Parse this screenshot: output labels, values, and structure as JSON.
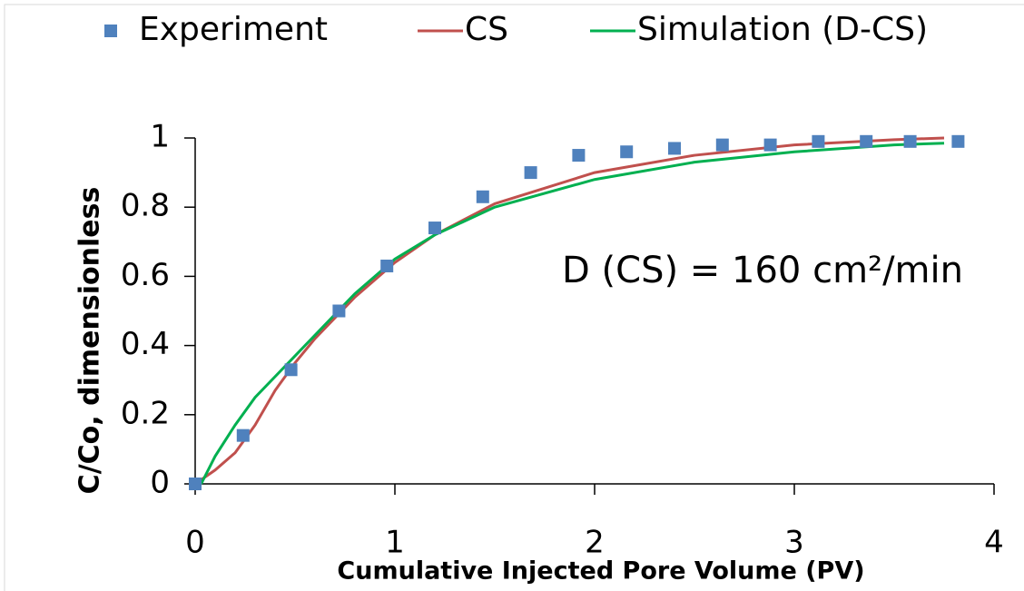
{
  "chart_data": {
    "type": "line",
    "legend": "top",
    "xlabel": "Cumulative Injected Pore Volume (PV)",
    "ylabel": "C/Co, dimensionless",
    "annotation": "D (CS) = 160 cm²/min",
    "xlim": [
      0,
      4
    ],
    "xticks": [
      0,
      1,
      2,
      3,
      4
    ],
    "ylim": [
      0,
      1
    ],
    "yticks": [
      0,
      0.2,
      0.4,
      0.6,
      0.8,
      1
    ],
    "series": [
      {
        "name": "Experiment",
        "type": "scatter",
        "color": "#4f81bd",
        "x": [
          0,
          0.24,
          0.48,
          0.72,
          0.96,
          1.2,
          1.44,
          1.68,
          1.92,
          2.16,
          2.4,
          2.64,
          2.88,
          3.12,
          3.36,
          3.58,
          3.82
        ],
        "values": [
          0,
          0.14,
          0.33,
          0.5,
          0.63,
          0.74,
          0.83,
          0.9,
          0.95,
          0.96,
          0.97,
          0.98,
          0.98,
          0.99,
          0.99,
          0.99,
          0.99
        ]
      },
      {
        "name": "CS",
        "type": "line",
        "color": "#c0504d",
        "x": [
          0,
          0.1,
          0.2,
          0.3,
          0.4,
          0.5,
          0.6,
          0.8,
          1.0,
          1.2,
          1.5,
          2,
          2.5,
          3,
          3.5,
          3.75
        ],
        "values": [
          0,
          0.04,
          0.09,
          0.17,
          0.27,
          0.35,
          0.42,
          0.54,
          0.64,
          0.72,
          0.81,
          0.9,
          0.95,
          0.98,
          0.995,
          1.0
        ]
      },
      {
        "name": "Simulation (D-CS)",
        "type": "line",
        "color": "#00b050",
        "x": [
          0.03,
          0.1,
          0.2,
          0.3,
          0.4,
          0.5,
          0.6,
          0.8,
          1.0,
          1.2,
          1.5,
          2,
          2.5,
          3,
          3.5,
          3.75
        ],
        "values": [
          0,
          0.08,
          0.17,
          0.25,
          0.31,
          0.37,
          0.43,
          0.55,
          0.65,
          0.72,
          0.8,
          0.88,
          0.93,
          0.96,
          0.98,
          0.985
        ]
      }
    ]
  }
}
